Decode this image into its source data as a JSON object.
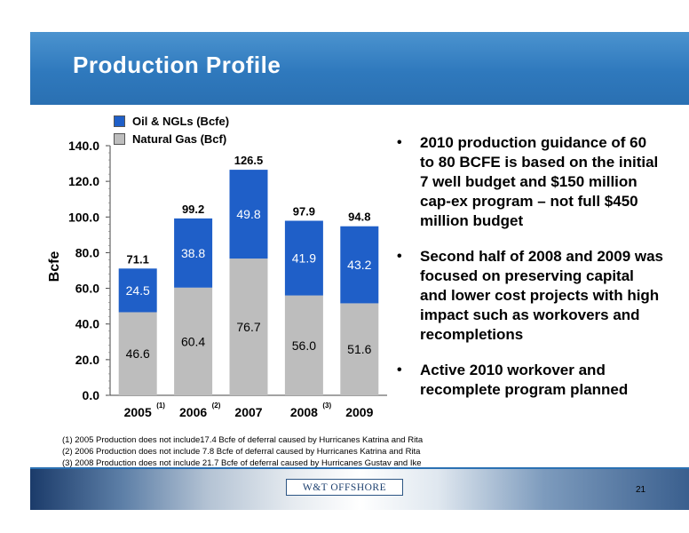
{
  "slide": {
    "title": "Production Profile",
    "page_number": "21",
    "logo_text": "W&T OFFSHORE"
  },
  "legend": [
    {
      "label": "Oil & NGLs (Bcfe)",
      "color": "#1f5fc8"
    },
    {
      "label": "Natural Gas (Bcf)",
      "color": "#bdbdbd"
    }
  ],
  "chart_data": {
    "type": "bar",
    "stacked": true,
    "categories": [
      "2005",
      "2006",
      "2007",
      "2008",
      "2009"
    ],
    "category_footnotes": [
      "(1)",
      "(2)",
      "",
      "(3)",
      ""
    ],
    "series": [
      {
        "name": "Natural Gas (Bcf)",
        "values": [
          46.6,
          60.4,
          76.7,
          56.0,
          51.6
        ],
        "color": "#bdbdbd"
      },
      {
        "name": "Oil & NGLs (Bcfe)",
        "values": [
          24.5,
          38.8,
          49.8,
          41.9,
          43.2
        ],
        "color": "#1f5fc8"
      }
    ],
    "value_labels": {
      "gas": [
        "46.6",
        "60.4",
        "76.7",
        "56.0",
        "51.6"
      ],
      "oil": [
        "24.5",
        "38.8",
        "49.8",
        "41.9",
        "43.2"
      ],
      "totals": [
        "71.1",
        "99.2",
        "126.5",
        "97.9",
        "94.8"
      ]
    },
    "ylabel": "Bcfe",
    "ylim": [
      0,
      140
    ],
    "yticks": [
      "0.0",
      "20.0",
      "40.0",
      "60.0",
      "80.0",
      "100.0",
      "120.0",
      "140.0"
    ],
    "grid": false,
    "legend_position": "top-left"
  },
  "bullets": [
    "2010 production guidance of 60 to 80 BCFE is based on the initial 7 well budget and $150 million cap-ex program – not full $450 million budget",
    "Second half of 2008 and 2009 was focused on preserving capital and lower cost projects with high impact such as workovers and recompletions",
    "Active 2010 workover and recomplete program planned"
  ],
  "footnotes": [
    "(1)  2005 Production does not include17.4 Bcfe of deferral caused by Hurricanes Katrina and Rita",
    "(2)  2006 Production does not include 7.8 Bcfe of deferral caused by Hurricanes Katrina and Rita",
    "(3)  2008 Production does not include 21.7 Bcfe of deferral caused by Hurricanes Gustav and Ike"
  ]
}
